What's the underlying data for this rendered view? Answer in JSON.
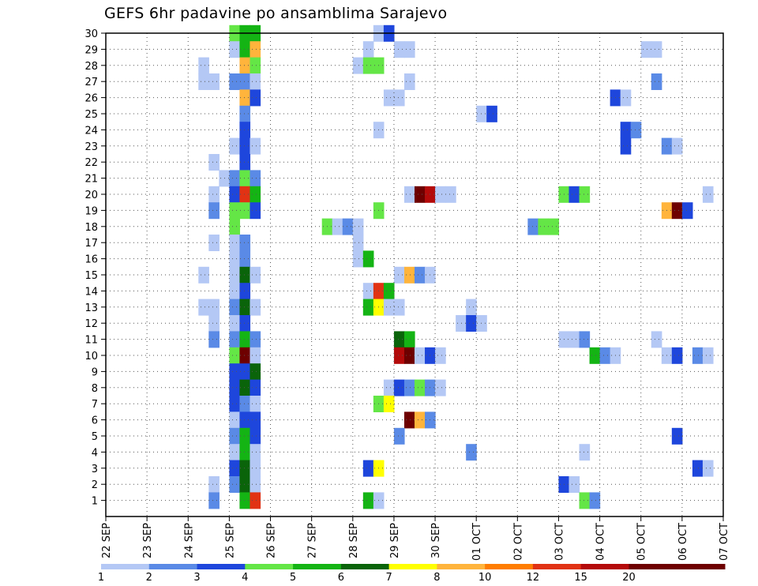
{
  "chart_data": {
    "type": "heatmap",
    "title": "GEFS 6hr padavine po ansamblima Sarajevo",
    "x_tick_labels": [
      "22 SEP",
      "23 SEP",
      "24 SEP",
      "25 SEP",
      "26 SEP",
      "27 SEP",
      "28 SEP",
      "29 SEP",
      "30 SEP",
      "01 OCT",
      "02 OCT",
      "03 OCT",
      "04 OCT",
      "05 OCT",
      "06 OCT",
      "07 OCT"
    ],
    "y_tick_labels": [
      "1",
      "2",
      "3",
      "4",
      "5",
      "6",
      "7",
      "8",
      "9",
      "10",
      "11",
      "12",
      "13",
      "14",
      "15",
      "16",
      "17",
      "18",
      "19",
      "20",
      "21",
      "22",
      "23",
      "24",
      "25",
      "26",
      "27",
      "28",
      "29",
      "30"
    ],
    "ylim": [
      0,
      30
    ],
    "time_step_hours": 6,
    "grid": "dotted",
    "color_levels": [
      {
        "label": "1",
        "color": "#b4c8f5"
      },
      {
        "label": "2",
        "color": "#5a8ae6"
      },
      {
        "label": "3",
        "color": "#1e46dc"
      },
      {
        "label": "4",
        "color": "#64e646"
      },
      {
        "label": "5",
        "color": "#14b414"
      },
      {
        "label": "6",
        "color": "#0a640a"
      },
      {
        "label": "7",
        "color": "#ffff00"
      },
      {
        "label": "8",
        "color": "#ffb43c"
      },
      {
        "label": "10",
        "color": "#ff7d00"
      },
      {
        "label": "12",
        "color": "#e13214"
      },
      {
        "label": "15",
        "color": "#b40a0a"
      },
      {
        "label": "20",
        "color": "#6e0000"
      },
      {
        "label": "",
        "color": "#6e0000"
      }
    ],
    "colorbar_labels": [
      "1",
      "2",
      "3",
      "4",
      "5",
      "6",
      "7",
      "8",
      "10",
      "12",
      "15",
      "20"
    ],
    "cells": [
      {
        "y": 30,
        "c": [
          [
            12,
            4
          ],
          [
            13,
            5
          ],
          [
            14,
            5
          ],
          [
            26,
            1
          ],
          [
            27,
            3
          ]
        ]
      },
      {
        "y": 29,
        "c": [
          [
            12,
            1
          ],
          [
            13,
            5
          ],
          [
            14,
            8
          ],
          [
            25,
            1
          ],
          [
            28,
            1
          ],
          [
            29,
            1
          ],
          [
            52,
            1
          ],
          [
            53,
            1
          ]
        ]
      },
      {
        "y": 28,
        "c": [
          [
            9,
            1
          ],
          [
            13,
            8
          ],
          [
            14,
            4
          ],
          [
            24,
            1
          ],
          [
            25,
            4
          ],
          [
            26,
            4
          ]
        ]
      },
      {
        "y": 27,
        "c": [
          [
            9,
            1
          ],
          [
            10,
            1
          ],
          [
            12,
            2
          ],
          [
            13,
            2
          ],
          [
            14,
            1
          ],
          [
            29,
            1
          ],
          [
            53,
            2
          ]
        ]
      },
      {
        "y": 26,
        "c": [
          [
            13,
            8
          ],
          [
            14,
            3
          ],
          [
            27,
            1
          ],
          [
            28,
            1
          ],
          [
            49,
            3
          ],
          [
            50,
            1
          ]
        ]
      },
      {
        "y": 25,
        "c": [
          [
            13,
            2
          ],
          [
            36,
            1
          ],
          [
            37,
            3
          ]
        ]
      },
      {
        "y": 24,
        "c": [
          [
            13,
            3
          ],
          [
            26,
            1
          ],
          [
            50,
            3
          ],
          [
            51,
            2
          ]
        ]
      },
      {
        "y": 23,
        "c": [
          [
            12,
            1
          ],
          [
            13,
            3
          ],
          [
            14,
            1
          ],
          [
            50,
            3
          ],
          [
            54,
            2
          ],
          [
            55,
            1
          ]
        ]
      },
      {
        "y": 22,
        "c": [
          [
            10,
            1
          ],
          [
            13,
            3
          ]
        ]
      },
      {
        "y": 21,
        "c": [
          [
            11,
            1
          ],
          [
            12,
            2
          ],
          [
            13,
            4
          ],
          [
            14,
            2
          ]
        ]
      },
      {
        "y": 20,
        "c": [
          [
            10,
            1
          ],
          [
            12,
            3
          ],
          [
            13,
            10
          ],
          [
            14,
            5
          ],
          [
            29,
            1
          ],
          [
            30,
            12
          ],
          [
            31,
            11
          ],
          [
            32,
            1
          ],
          [
            33,
            1
          ],
          [
            44,
            4
          ],
          [
            45,
            3
          ],
          [
            46,
            4
          ],
          [
            58,
            1
          ]
        ]
      },
      {
        "y": 19,
        "c": [
          [
            10,
            2
          ],
          [
            12,
            4
          ],
          [
            13,
            4
          ],
          [
            14,
            3
          ],
          [
            26,
            4
          ],
          [
            54,
            8
          ],
          [
            55,
            12
          ],
          [
            56,
            3
          ]
        ]
      },
      {
        "y": 18,
        "c": [
          [
            12,
            4
          ],
          [
            21,
            4
          ],
          [
            22,
            1
          ],
          [
            23,
            2
          ],
          [
            24,
            1
          ],
          [
            41,
            2
          ],
          [
            42,
            4
          ],
          [
            43,
            4
          ]
        ]
      },
      {
        "y": 17,
        "c": [
          [
            10,
            1
          ],
          [
            12,
            1
          ],
          [
            13,
            2
          ],
          [
            24,
            1
          ]
        ]
      },
      {
        "y": 16,
        "c": [
          [
            12,
            1
          ],
          [
            13,
            2
          ],
          [
            24,
            1
          ],
          [
            25,
            5
          ]
        ]
      },
      {
        "y": 15,
        "c": [
          [
            9,
            1
          ],
          [
            12,
            1
          ],
          [
            13,
            6
          ],
          [
            14,
            1
          ],
          [
            28,
            1
          ],
          [
            29,
            8
          ],
          [
            30,
            2
          ],
          [
            31,
            1
          ]
        ]
      },
      {
        "y": 14,
        "c": [
          [
            12,
            1
          ],
          [
            13,
            3
          ],
          [
            25,
            1
          ],
          [
            26,
            10
          ],
          [
            27,
            5
          ]
        ]
      },
      {
        "y": 13,
        "c": [
          [
            9,
            1
          ],
          [
            10,
            1
          ],
          [
            12,
            2
          ],
          [
            13,
            6
          ],
          [
            14,
            1
          ],
          [
            25,
            5
          ],
          [
            26,
            7
          ],
          [
            27,
            1
          ],
          [
            28,
            1
          ],
          [
            35,
            1
          ]
        ]
      },
      {
        "y": 12,
        "c": [
          [
            10,
            1
          ],
          [
            12,
            1
          ],
          [
            13,
            3
          ],
          [
            34,
            1
          ],
          [
            35,
            3
          ],
          [
            36,
            1
          ]
        ]
      },
      {
        "y": 11,
        "c": [
          [
            10,
            2
          ],
          [
            12,
            2
          ],
          [
            13,
            5
          ],
          [
            14,
            2
          ],
          [
            28,
            6
          ],
          [
            29,
            5
          ],
          [
            44,
            1
          ],
          [
            45,
            1
          ],
          [
            46,
            2
          ],
          [
            53,
            1
          ]
        ]
      },
      {
        "y": 10,
        "c": [
          [
            12,
            4
          ],
          [
            13,
            12
          ],
          [
            14,
            1
          ],
          [
            28,
            11
          ],
          [
            29,
            12
          ],
          [
            30,
            1
          ],
          [
            31,
            3
          ],
          [
            32,
            1
          ],
          [
            47,
            5
          ],
          [
            48,
            2
          ],
          [
            49,
            1
          ],
          [
            54,
            1
          ],
          [
            55,
            3
          ],
          [
            57,
            2
          ],
          [
            58,
            1
          ]
        ]
      },
      {
        "y": 9,
        "c": [
          [
            12,
            3
          ],
          [
            13,
            3
          ],
          [
            14,
            6
          ]
        ]
      },
      {
        "y": 8,
        "c": [
          [
            12,
            3
          ],
          [
            13,
            6
          ],
          [
            14,
            3
          ],
          [
            27,
            1
          ],
          [
            28,
            3
          ],
          [
            29,
            2
          ],
          [
            30,
            4
          ],
          [
            31,
            2
          ],
          [
            32,
            1
          ]
        ]
      },
      {
        "y": 7,
        "c": [
          [
            12,
            3
          ],
          [
            13,
            2
          ],
          [
            14,
            1
          ],
          [
            26,
            4
          ],
          [
            27,
            7
          ]
        ]
      },
      {
        "y": 6,
        "c": [
          [
            12,
            1
          ],
          [
            13,
            3
          ],
          [
            14,
            3
          ],
          [
            29,
            12
          ],
          [
            30,
            8
          ],
          [
            31,
            2
          ]
        ]
      },
      {
        "y": 5,
        "c": [
          [
            12,
            2
          ],
          [
            13,
            5
          ],
          [
            14,
            3
          ],
          [
            28,
            2
          ],
          [
            55,
            3
          ]
        ]
      },
      {
        "y": 4,
        "c": [
          [
            12,
            1
          ],
          [
            13,
            5
          ],
          [
            14,
            1
          ],
          [
            35,
            2
          ],
          [
            46,
            1
          ]
        ]
      },
      {
        "y": 3,
        "c": [
          [
            12,
            3
          ],
          [
            13,
            6
          ],
          [
            14,
            1
          ],
          [
            25,
            3
          ],
          [
            26,
            7
          ],
          [
            57,
            3
          ],
          [
            58,
            1
          ]
        ]
      },
      {
        "y": 2,
        "c": [
          [
            10,
            1
          ],
          [
            12,
            2
          ],
          [
            13,
            6
          ],
          [
            14,
            1
          ],
          [
            44,
            3
          ],
          [
            45,
            1
          ]
        ]
      },
      {
        "y": 1,
        "c": [
          [
            10,
            2
          ],
          [
            13,
            5
          ],
          [
            14,
            10
          ],
          [
            25,
            5
          ],
          [
            26,
            1
          ],
          [
            46,
            4
          ],
          [
            47,
            2
          ]
        ]
      }
    ]
  }
}
